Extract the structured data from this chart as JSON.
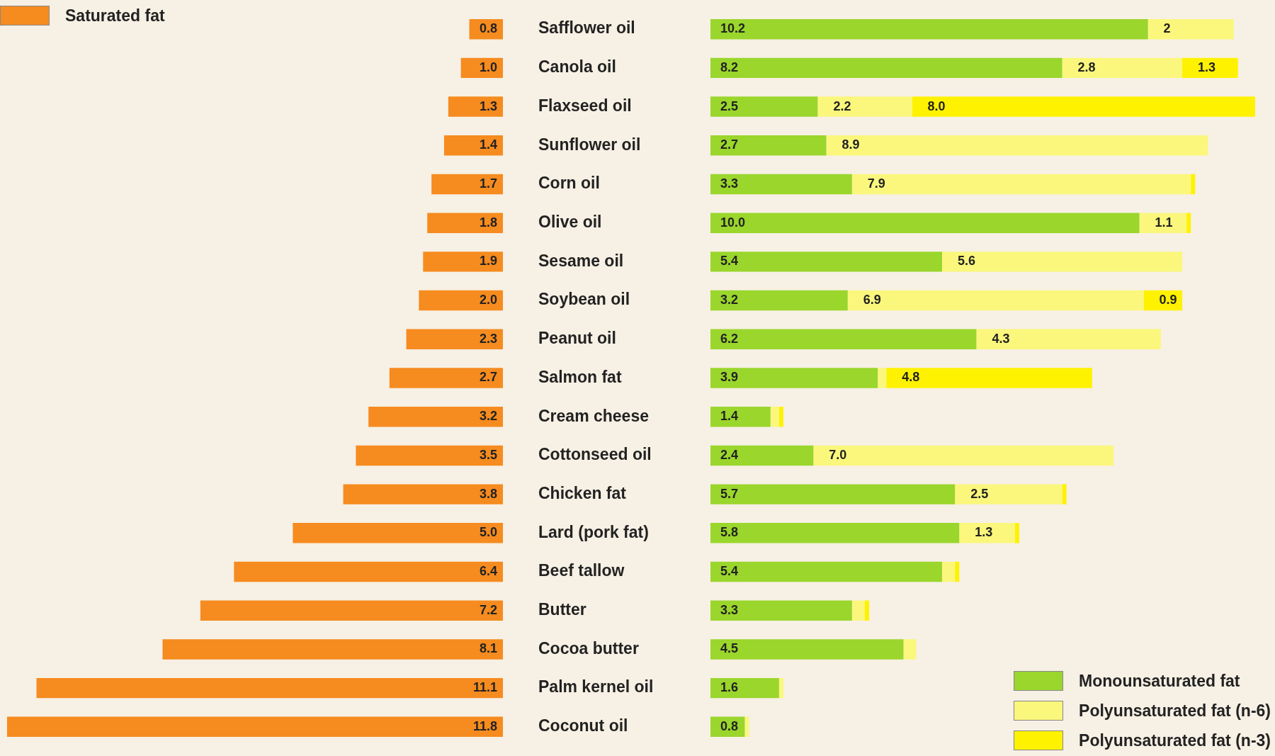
{
  "chart_data": [
    {
      "type": "bar",
      "orientation": "horizontal",
      "categories": [
        "Safflower oil",
        "Canola oil",
        "Flaxseed oil",
        "Sunflower oil",
        "Corn oil",
        "Olive oil",
        "Sesame oil",
        "Soybean oil",
        "Peanut oil",
        "Salmon fat",
        "Cream cheese",
        "Cottonseed oil",
        "Chicken fat",
        "Lard (pork fat)",
        "Beef tallow",
        "Butter",
        "Cocoa butter",
        "Palm kernel oil",
        "Coconut oil"
      ],
      "xlim": [
        11.8,
        0
      ],
      "tick_labels": "y",
      "legend": "top left",
      "series": [
        {
          "name": "Saturated fat",
          "color": "#f68b1f",
          "values": [
            0.8,
            1.0,
            1.3,
            1.4,
            1.7,
            1.8,
            1.9,
            2.0,
            2.3,
            2.7,
            3.2,
            3.5,
            3.8,
            5.0,
            6.4,
            7.2,
            8.1,
            11.1,
            11.8
          ],
          "value_labels": [
            "0.8",
            "1.0",
            "1.3",
            "1.4",
            "1.7",
            "1.8",
            "1.9",
            "2.0",
            "2.3",
            "2.7",
            "3.2",
            "3.5",
            "3.8",
            "5.0",
            "6.4",
            "7.2",
            "8.1",
            "11.1",
            "11.8"
          ]
        }
      ]
    },
    {
      "type": "bar",
      "orientation": "horizontal",
      "stacked": true,
      "categories": [
        null,
        null,
        null,
        null,
        null,
        null,
        null,
        null,
        null,
        null,
        null,
        null,
        null,
        null,
        null,
        null,
        null,
        null,
        null
      ],
      "xlim": [
        0,
        12.7
      ],
      "tick_labels": false,
      "legend": "bottom right",
      "series": [
        {
          "name": "Monounsaturated fat",
          "color": "#9ad62c",
          "values": [
            10.2,
            8.2,
            2.5,
            2.7,
            3.3,
            10.0,
            5.4,
            3.2,
            6.2,
            3.9,
            1.4,
            2.4,
            5.7,
            5.8,
            5.4,
            3.3,
            4.5,
            1.6,
            0.8
          ],
          "value_labels": [
            "10.2",
            "8.2",
            "2.5",
            "2.7",
            "3.3",
            "10.0",
            "5.4",
            "3.2",
            "6.2",
            "3.9",
            "1.4",
            "2.4",
            "5.7",
            "5.8",
            "5.4",
            "3.3",
            "4.5",
            "1.6",
            "0.8"
          ]
        },
        {
          "name": "Polyunsaturated fat (n-6)",
          "color": "#faf77c",
          "values": [
            2,
            2.8,
            2.2,
            8.9,
            7.9,
            1.1,
            5.6,
            6.9,
            4.3,
            0.2,
            0.2,
            7.0,
            2.5,
            1.3,
            0.3,
            0.3,
            0.3,
            0.1,
            0.1
          ],
          "value_labels": [
            "2",
            "2.8",
            "2.2",
            "8.9",
            "7.9",
            "1.1",
            "5.6",
            "6.9",
            "4.3",
            null,
            null,
            "7.0",
            "2.5",
            "1.3",
            null,
            null,
            null,
            null,
            null
          ]
        },
        {
          "name": "Polyunsaturated fat (n-3)",
          "color": "#fff200",
          "values": [
            null,
            1.3,
            8.0,
            null,
            0.1,
            0.1,
            null,
            0.9,
            null,
            4.8,
            0.1,
            null,
            0.1,
            0.1,
            0.1,
            0.1,
            null,
            null,
            null
          ],
          "value_labels": [
            null,
            "1.3",
            "8.0",
            null,
            null,
            null,
            null,
            "0.9",
            null,
            "4.8",
            null,
            null,
            null,
            null,
            null,
            null,
            null,
            null,
            null
          ]
        }
      ]
    }
  ]
}
